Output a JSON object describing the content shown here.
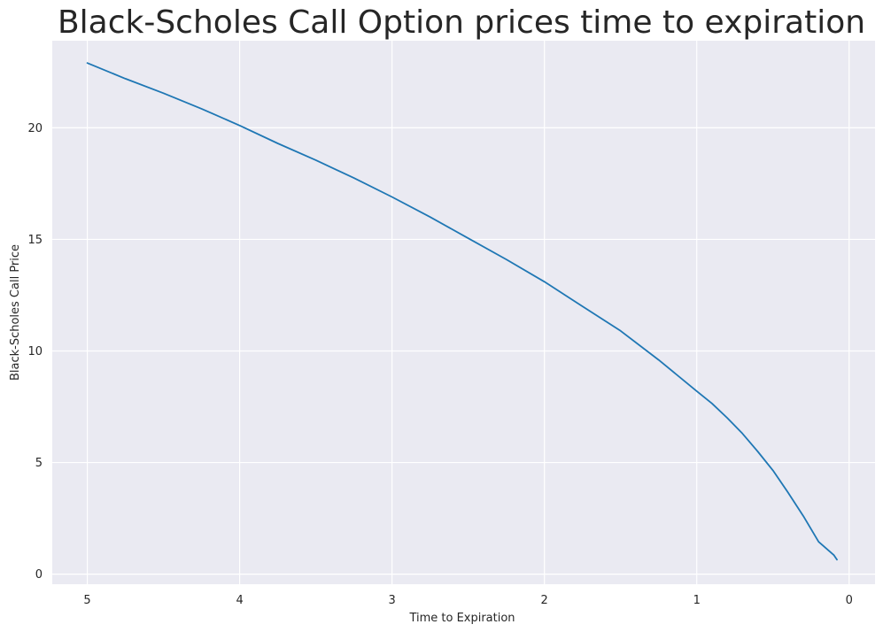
{
  "chart_data": {
    "type": "line",
    "title": "Black-Scholes Call Option prices time to expiration",
    "xlabel": "Time to Expiration",
    "ylabel": "Black-Scholes Call Price",
    "x_axis_inverted": true,
    "xlim": [
      5.23,
      -0.17
    ],
    "ylim": [
      -0.45,
      23.9
    ],
    "x_ticks": [
      5,
      4,
      3,
      2,
      1,
      0
    ],
    "y_ticks": [
      0,
      5,
      10,
      15,
      20
    ],
    "grid": true,
    "legend": "none",
    "colors": {
      "background": "#eaeaf2",
      "grid": "#ffffff",
      "line": "#1f77b4"
    },
    "series": [
      {
        "x": [
          5.0,
          4.75,
          4.5,
          4.25,
          4.0,
          3.75,
          3.5,
          3.25,
          3.0,
          2.75,
          2.5,
          2.25,
          2.0,
          1.75,
          1.5,
          1.25,
          1.0,
          0.9,
          0.8,
          0.7,
          0.6,
          0.5,
          0.4,
          0.3,
          0.2,
          0.1,
          0.08
        ],
        "values": [
          22.9,
          22.2,
          21.55,
          20.85,
          20.1,
          19.3,
          18.55,
          17.75,
          16.9,
          16.0,
          15.05,
          14.1,
          13.1,
          12.0,
          10.9,
          9.6,
          8.2,
          7.65,
          7.0,
          6.3,
          5.5,
          4.65,
          3.65,
          2.6,
          1.45,
          0.85,
          0.65
        ]
      }
    ]
  }
}
